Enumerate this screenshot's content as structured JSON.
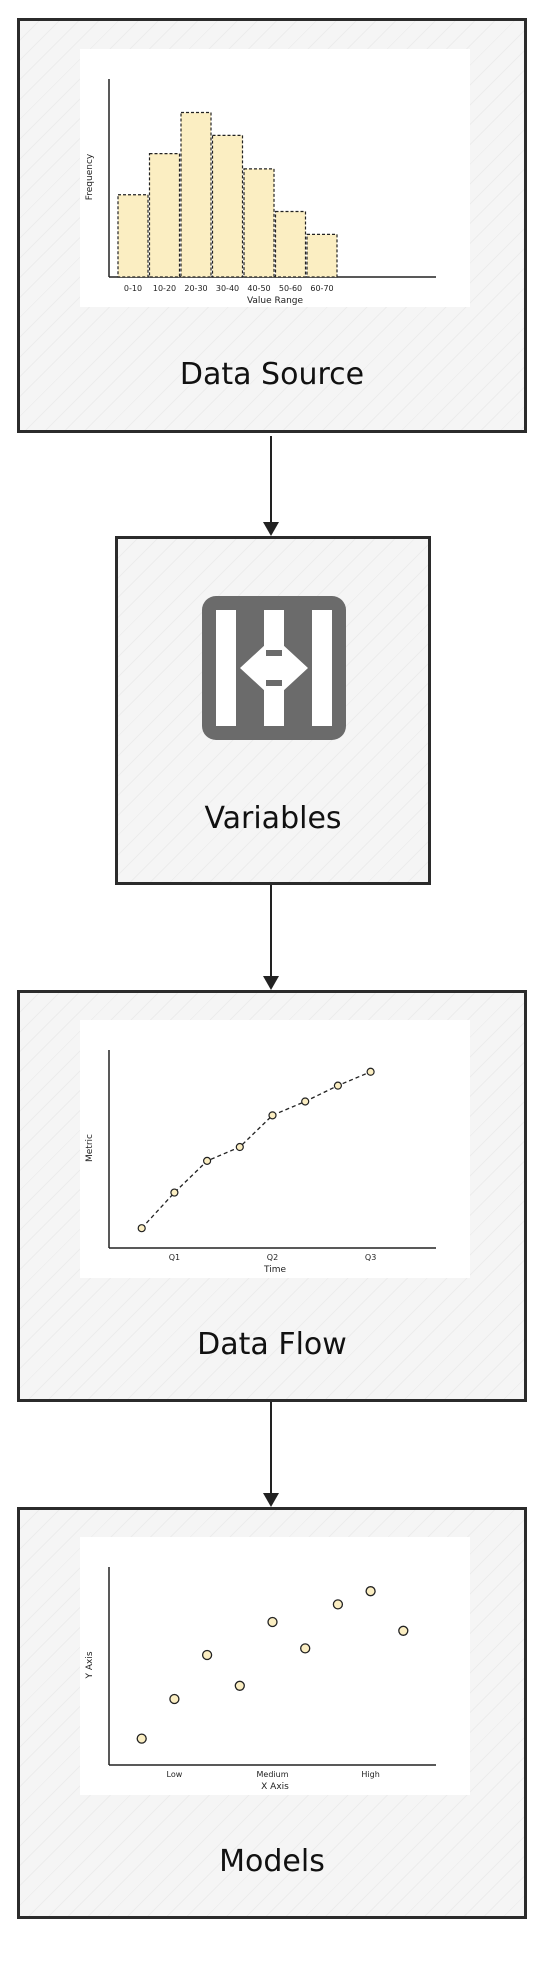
{
  "nodes": {
    "data_source": {
      "label": "Data Source"
    },
    "variables": {
      "label": "Variables",
      "icon": "merge-arrows-icon"
    },
    "data_flow": {
      "label": "Data Flow"
    },
    "models": {
      "label": "Models"
    }
  },
  "colors": {
    "bar_fill": "#fbeec2",
    "point_fill": "#fbeec2",
    "stroke": "#222222",
    "icon_gray": "#6b6b6b"
  },
  "chart_data": [
    {
      "type": "bar",
      "categories": [
        "0-10",
        "10-20",
        "20-30",
        "30-40",
        "40-50",
        "50-60",
        "60-70"
      ],
      "values": [
        54,
        81,
        108,
        93,
        71,
        43,
        28
      ],
      "xlabel": "Value Range",
      "ylabel": "Frequency",
      "ylim": [
        0,
        130
      ]
    },
    {
      "type": "line",
      "x": [
        1,
        2,
        3,
        4,
        5,
        6,
        7,
        8
      ],
      "values": [
        10,
        28,
        44,
        51,
        67,
        74,
        82,
        89
      ],
      "xticks": [
        {
          "x": 2,
          "label": "Q1"
        },
        {
          "x": 5,
          "label": "Q2"
        },
        {
          "x": 8,
          "label": "Q3"
        }
      ],
      "xlabel": "Time",
      "ylabel": "Metric",
      "xlim": [
        0,
        10
      ],
      "ylim": [
        0,
        100
      ]
    },
    {
      "type": "scatter",
      "points": [
        [
          1,
          12
        ],
        [
          2,
          30
        ],
        [
          3,
          50
        ],
        [
          4,
          36
        ],
        [
          5,
          65
        ],
        [
          6,
          53
        ],
        [
          7,
          73
        ],
        [
          8,
          79
        ],
        [
          9,
          61
        ]
      ],
      "xticks": [
        {
          "x": 2,
          "label": "Low"
        },
        {
          "x": 5,
          "label": "Medium"
        },
        {
          "x": 8,
          "label": "High"
        }
      ],
      "xlabel": "X Axis",
      "ylabel": "Y Axis",
      "xlim": [
        0,
        10
      ],
      "ylim": [
        0,
        90
      ]
    }
  ]
}
